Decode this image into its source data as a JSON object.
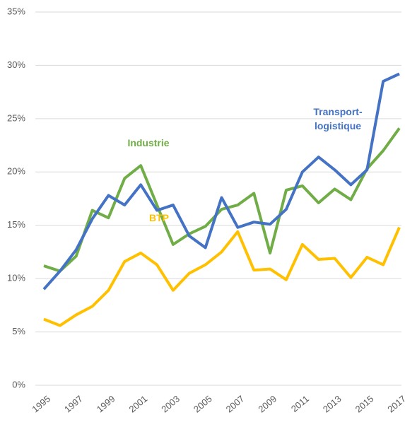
{
  "chart_data": {
    "type": "line",
    "x": [
      1995,
      1996,
      1997,
      1998,
      1999,
      2000,
      2001,
      2002,
      2003,
      2004,
      2005,
      2006,
      2007,
      2008,
      2009,
      2010,
      2011,
      2012,
      2013,
      2014,
      2015,
      2016,
      2017
    ],
    "xlim": [
      1995,
      2017
    ],
    "xticks": [
      1995,
      1997,
      1999,
      2001,
      2003,
      2005,
      2007,
      2009,
      2011,
      2013,
      2015,
      2017
    ],
    "ylim": [
      0,
      35
    ],
    "yticks": [
      {
        "value": 0,
        "label": "0%"
      },
      {
        "value": 5,
        "label": "5%"
      },
      {
        "value": 10,
        "label": "10%"
      },
      {
        "value": 15,
        "label": "15%"
      },
      {
        "value": 20,
        "label": "20%"
      },
      {
        "value": 25,
        "label": "25%"
      },
      {
        "value": 30,
        "label": "30%"
      },
      {
        "value": 35,
        "label": "35%"
      }
    ],
    "grid": true,
    "series": [
      {
        "name": "Industrie",
        "color": "#70ad47",
        "values": [
          11.2,
          10.7,
          12.1,
          16.4,
          15.7,
          19.4,
          20.6,
          16.9,
          13.2,
          14.2,
          14.9,
          16.5,
          16.9,
          18.0,
          12.4,
          18.3,
          18.7,
          17.1,
          18.4,
          17.4,
          20.3,
          22.0,
          24.1
        ]
      },
      {
        "name": "BTP",
        "color": "#ffc000",
        "values": [
          6.2,
          5.6,
          6.6,
          7.4,
          8.9,
          11.6,
          12.4,
          11.3,
          8.9,
          10.5,
          11.3,
          12.5,
          14.4,
          10.8,
          10.9,
          9.9,
          13.2,
          11.8,
          11.9,
          10.1,
          12.0,
          11.3,
          14.8
        ]
      },
      {
        "name": "Transport-logistique",
        "color": "#4472c4",
        "values": [
          9.0,
          10.7,
          12.7,
          15.6,
          17.8,
          16.9,
          18.8,
          16.4,
          16.9,
          14.0,
          12.9,
          17.6,
          14.8,
          15.3,
          15.1,
          16.5,
          20.0,
          21.4,
          20.2,
          18.8,
          20.2,
          28.5,
          29.2
        ]
      }
    ]
  }
}
